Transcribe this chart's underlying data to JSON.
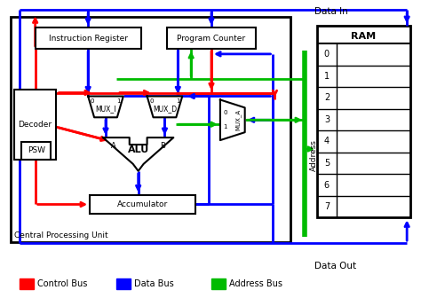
{
  "bg_color": "#ffffff",
  "box_color": "#000000",
  "red": "#ff0000",
  "blue": "#0000ff",
  "green": "#00bb00",
  "legend": {
    "control": "Control Bus",
    "data": "Data Bus",
    "address": "Address Bus"
  },
  "ram_rows": [
    "0",
    "1",
    "2",
    "3",
    "4",
    "5",
    "6",
    "7"
  ],
  "data_in_label": "Data In",
  "data_out_label": "Data Out",
  "address_label": "Address",
  "cpu_label": "Central Processing Unit"
}
